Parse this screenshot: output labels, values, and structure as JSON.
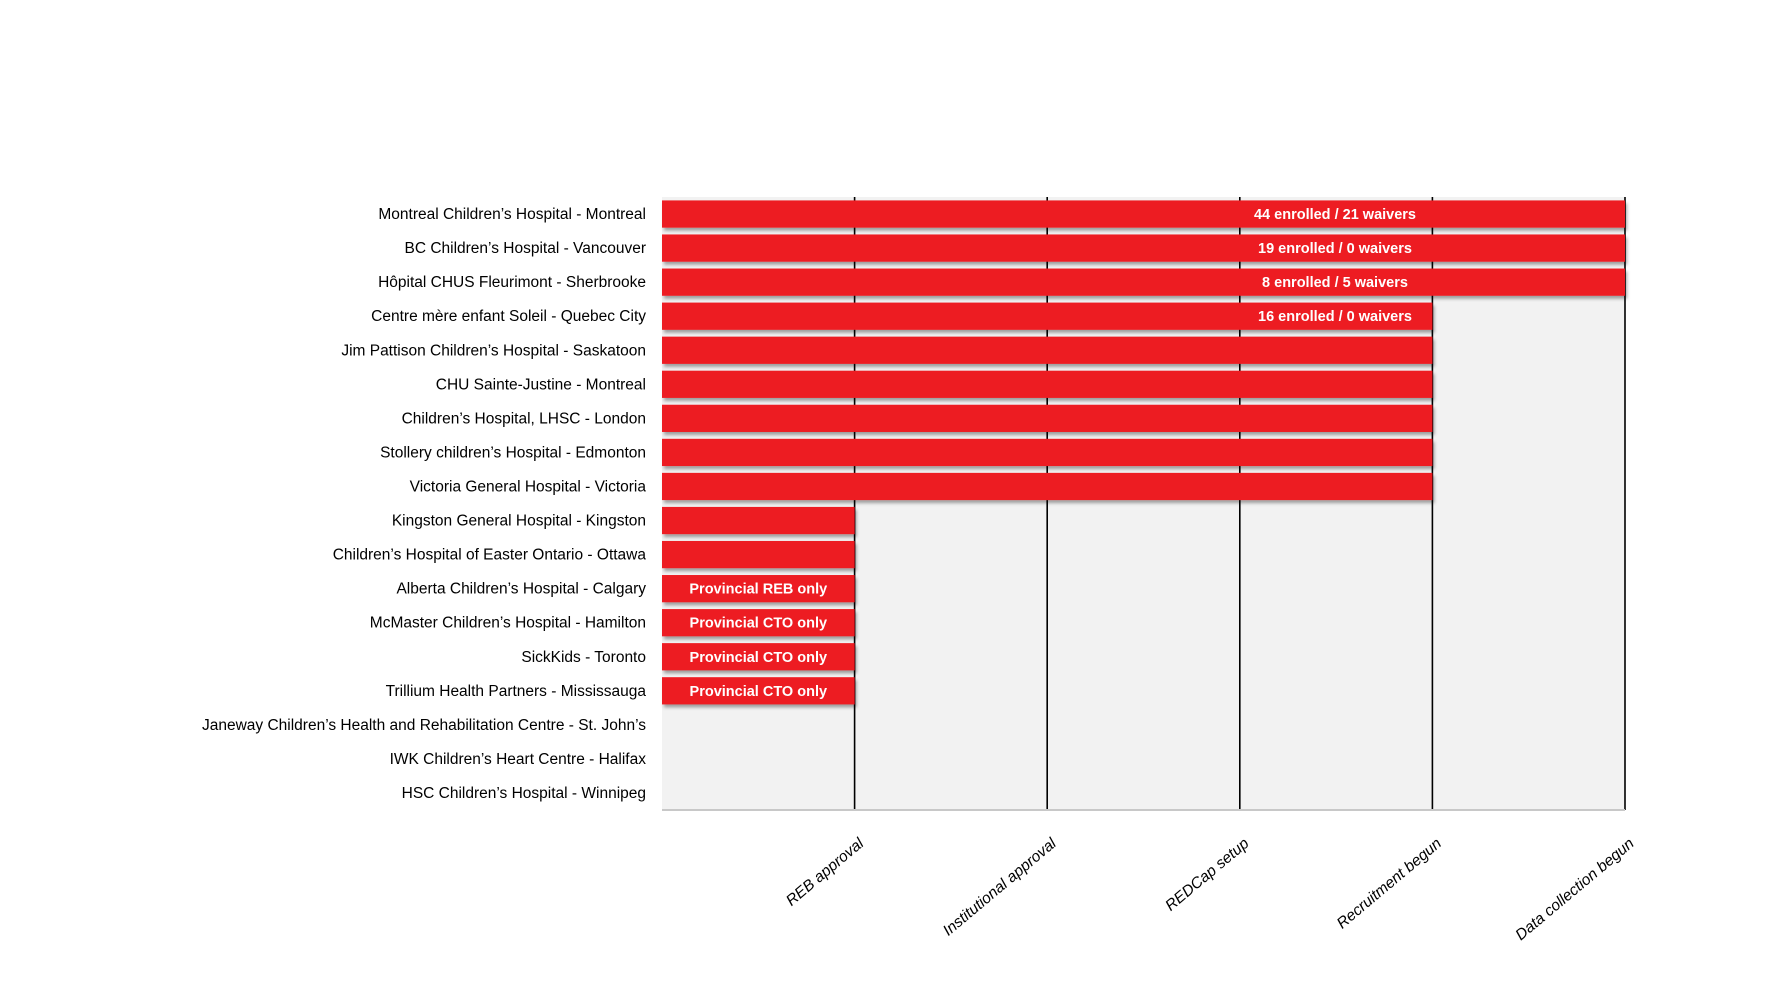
{
  "chart_data": {
    "type": "bar",
    "orientation": "horizontal",
    "title": "",
    "xlabel": "",
    "ylabel": "",
    "stages": [
      "REB approval",
      "Institutional approval",
      "REDCap setup",
      "Recruitment begun",
      "Data collection begun"
    ],
    "xlim": [
      0,
      5
    ],
    "grid": true,
    "bar_color": "#ED1C24",
    "background_color": "#F2F2F2",
    "sites": [
      {
        "name": "Montreal Children’s Hospital - Montreal",
        "stages_completed": 5,
        "label": "44 enrolled / 21 waivers"
      },
      {
        "name": "BC Children’s Hospital - Vancouver",
        "stages_completed": 5,
        "label": "19 enrolled / 0 waivers"
      },
      {
        "name": "Hôpital CHUS Fleurimont - Sherbrooke",
        "stages_completed": 5,
        "label": "8 enrolled / 5 waivers"
      },
      {
        "name": "Centre mère enfant Soleil - Quebec City",
        "stages_completed": 4,
        "label": "16 enrolled / 0 waivers"
      },
      {
        "name": "Jim Pattison Children’s Hospital - Saskatoon",
        "stages_completed": 4,
        "label": ""
      },
      {
        "name": "CHU Sainte-Justine - Montreal",
        "stages_completed": 4,
        "label": ""
      },
      {
        "name": "Children’s Hospital, LHSC - London",
        "stages_completed": 4,
        "label": ""
      },
      {
        "name": "Stollery children’s Hospital - Edmonton",
        "stages_completed": 4,
        "label": ""
      },
      {
        "name": "Victoria General Hospital - Victoria",
        "stages_completed": 4,
        "label": ""
      },
      {
        "name": "Kingston General Hospital - Kingston",
        "stages_completed": 1,
        "label": ""
      },
      {
        "name": "Children’s Hospital of Easter Ontario - Ottawa",
        "stages_completed": 1,
        "label": ""
      },
      {
        "name": "Alberta Children’s Hospital - Calgary",
        "stages_completed": 1,
        "label": "Provincial REB only"
      },
      {
        "name": "McMaster Children’s Hospital - Hamilton",
        "stages_completed": 1,
        "label": "Provincial CTO only"
      },
      {
        "name": "SickKids - Toronto",
        "stages_completed": 1,
        "label": "Provincial CTO only"
      },
      {
        "name": "Trillium Health Partners - Mississauga",
        "stages_completed": 1,
        "label": "Provincial CTO only"
      },
      {
        "name": "Janeway Children’s Health and Rehabilitation Centre - St. John’s",
        "stages_completed": 0,
        "label": ""
      },
      {
        "name": "IWK Children’s Heart Centre - Halifax",
        "stages_completed": 0,
        "label": ""
      },
      {
        "name": "HSC Children’s Hospital - Winnipeg",
        "stages_completed": 0,
        "label": ""
      }
    ]
  }
}
